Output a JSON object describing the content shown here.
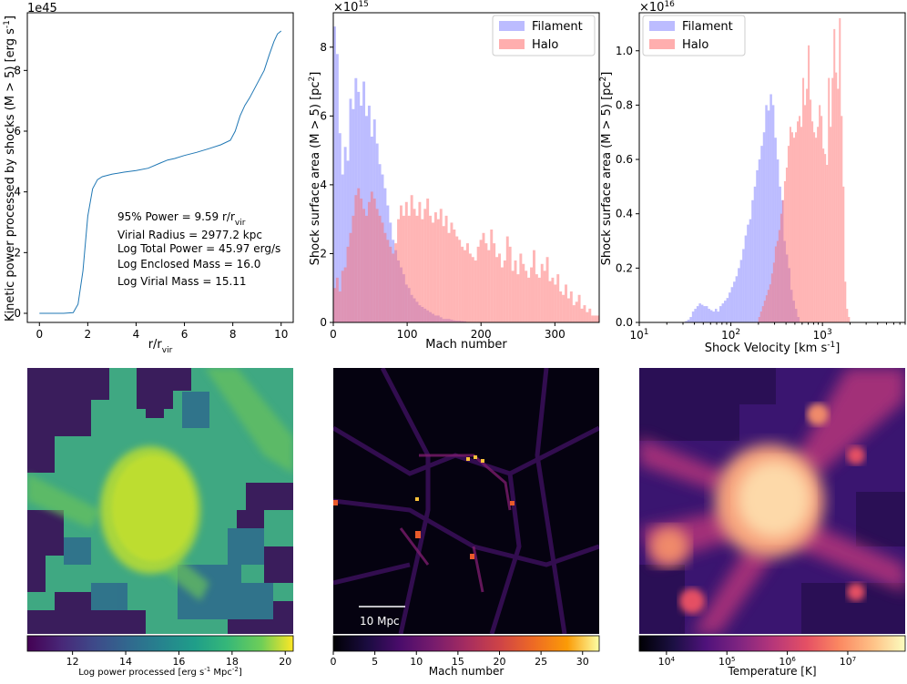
{
  "colors": {
    "filament": "#6b6bff",
    "halo": "#ff6b6b",
    "line": "#1f77b4"
  },
  "chart_data": [
    {
      "type": "line",
      "name": "enclosed-power",
      "title": "",
      "xlabel": "r/r",
      "xlabel_sub": "vir",
      "ylabel": "Kinetic power processed by shocks (M > 5) [erg s",
      "ylabel_sup": "-1",
      "ylabel_end": "]",
      "offset_label": "1e45",
      "xlim": [
        -0.5,
        10.5
      ],
      "ylim": [
        -0.3,
        9.9
      ],
      "xticks": [
        0,
        2,
        4,
        6,
        8,
        10
      ],
      "yticks": [
        0,
        2,
        4,
        6,
        8
      ],
      "x": [
        0,
        0.5,
        1.0,
        1.4,
        1.6,
        1.8,
        2.0,
        2.2,
        2.4,
        2.6,
        3.0,
        3.5,
        4.0,
        4.5,
        5.0,
        5.3,
        5.6,
        6.0,
        6.5,
        7.0,
        7.5,
        7.9,
        8.1,
        8.3,
        8.5,
        8.7,
        8.9,
        9.1,
        9.3,
        9.5,
        9.7,
        9.85,
        10.0
      ],
      "y": [
        0,
        0,
        0,
        0.02,
        0.3,
        1.4,
        3.2,
        4.1,
        4.4,
        4.5,
        4.58,
        4.65,
        4.7,
        4.78,
        4.95,
        5.05,
        5.1,
        5.2,
        5.3,
        5.42,
        5.55,
        5.7,
        6.0,
        6.5,
        6.85,
        7.1,
        7.4,
        7.7,
        8.0,
        8.5,
        8.95,
        9.2,
        9.3
      ],
      "annotations": [
        {
          "text": "95% Power = 9.59 r/r",
          "sub": "vir"
        },
        {
          "text": "Virial Radius = 2977.2 kpc"
        },
        {
          "text": "Log Total Power = 45.97 erg/s"
        },
        {
          "text": "Log Enclosed Mass = 16.0"
        },
        {
          "text": "Log Virial Mass = 15.11"
        }
      ]
    },
    {
      "type": "bar",
      "name": "mach-histogram",
      "xlabel": "Mach number",
      "ylabel": "Shock surface area (M > 5) [pc",
      "ylabel_sup": "2",
      "ylabel_end": "]",
      "offset_label": "×10",
      "offset_exp": "15",
      "xlim": [
        0,
        360
      ],
      "ylim": [
        0,
        9.0
      ],
      "xticks": [
        0,
        100,
        200,
        300
      ],
      "yticks": [
        0,
        2,
        4,
        6,
        8
      ],
      "legend": [
        "Filament",
        "Halo"
      ],
      "legend_loc": "top-right",
      "series": [
        {
          "name": "Filament",
          "bin_start": 0,
          "bin_width": 3.6,
          "values": [
            8.6,
            7.8,
            5.5,
            4.3,
            5.1,
            4.7,
            6.5,
            6.2,
            7.1,
            6.7,
            6.3,
            7.0,
            6.0,
            6.3,
            5.4,
            5.9,
            5.2,
            4.6,
            4.3,
            3.9,
            3.4,
            2.9,
            2.4,
            2.1,
            1.8,
            1.6,
            1.4,
            1.1,
            1.0,
            0.8,
            0.7,
            0.6,
            0.5,
            0.45,
            0.4,
            0.35,
            0.3,
            0.25,
            0.2,
            0.2,
            0.15,
            0.1,
            0.1,
            0.1,
            0.08,
            0.06,
            0.05,
            0.05,
            0.04,
            0.03
          ]
        },
        {
          "name": "Halo",
          "bin_start": 0,
          "bin_width": 3.6,
          "values": [
            1.0,
            1.3,
            0.9,
            1.5,
            1.6,
            2.2,
            2.6,
            3.1,
            3.7,
            3.9,
            3.6,
            3.3,
            3.1,
            3.5,
            3.8,
            3.6,
            3.3,
            3.1,
            2.9,
            2.6,
            2.4,
            2.2,
            2.0,
            2.3,
            3.0,
            3.4,
            3.1,
            3.5,
            3.1,
            3.7,
            3.3,
            3.1,
            3.5,
            3.0,
            3.3,
            3.6,
            3.1,
            2.9,
            3.2,
            3.0,
            3.3,
            2.8,
            3.1,
            2.6,
            2.9,
            2.7,
            2.5,
            2.4,
            2.2,
            2.1,
            2.3,
            2.0,
            1.9,
            1.8,
            2.2,
            2.4,
            2.6,
            2.3,
            2.1,
            2.7,
            2.3,
            1.9,
            2.0,
            1.6,
            1.8,
            2.5,
            2.2,
            1.5,
            1.8,
            1.4,
            2.0,
            1.7,
            1.5,
            1.3,
            1.6,
            2.1,
            1.4,
            1.3,
            1.7,
            1.5,
            1.9,
            1.2,
            1.3,
            1.1,
            1.4,
            0.9,
            0.8,
            1.1,
            0.7,
            0.9,
            0.5,
            0.6,
            0.8,
            0.4,
            0.5,
            0.3,
            0.4,
            0.2,
            0.2,
            0.2
          ]
        }
      ]
    },
    {
      "type": "bar",
      "name": "velocity-histogram",
      "xlabel": "Shock Velocity [km s",
      "xlabel_sup": "-1",
      "xlabel_end": "]",
      "ylabel": "Shock surface area (M > 5) [pc",
      "ylabel_sup": "2",
      "ylabel_end": "]",
      "offset_label": "×10",
      "offset_exp": "16",
      "xscale": "log",
      "xlim": [
        10,
        8000
      ],
      "ylim": [
        0,
        1.14
      ],
      "xticks": [
        {
          "base": "10",
          "exp": "1",
          "value": 10
        },
        {
          "base": "10",
          "exp": "2",
          "value": 100
        },
        {
          "base": "10",
          "exp": "3",
          "value": 1000
        }
      ],
      "yticks": [
        0.0,
        0.2,
        0.4,
        0.6,
        0.8,
        1.0
      ],
      "legend": [
        "Filament",
        "Halo"
      ],
      "legend_loc": "top-left",
      "series": [
        {
          "name": "Filament",
          "bin_start_log": 1.5,
          "bin_width_log": 0.025,
          "values": [
            0.005,
            0.01,
            0.02,
            0.04,
            0.05,
            0.06,
            0.07,
            0.065,
            0.06,
            0.06,
            0.05,
            0.045,
            0.04,
            0.05,
            0.04,
            0.06,
            0.07,
            0.08,
            0.09,
            0.11,
            0.13,
            0.15,
            0.17,
            0.2,
            0.23,
            0.27,
            0.32,
            0.36,
            0.38,
            0.45,
            0.5,
            0.56,
            0.6,
            0.65,
            0.7,
            0.8,
            0.78,
            0.84,
            0.8,
            0.68,
            0.6,
            0.5,
            0.45,
            0.3,
            0.25,
            0.2,
            0.12,
            0.08,
            0.05,
            0.02
          ]
        },
        {
          "name": "Halo",
          "bin_start_log": 2.3,
          "bin_width_log": 0.02,
          "values": [
            0.02,
            0.04,
            0.06,
            0.08,
            0.1,
            0.12,
            0.14,
            0.18,
            0.22,
            0.28,
            0.3,
            0.34,
            0.4,
            0.45,
            0.52,
            0.57,
            0.65,
            0.72,
            0.7,
            0.68,
            0.7,
            0.74,
            0.76,
            0.72,
            0.9,
            0.8,
            0.86,
            1.02,
            0.82,
            0.74,
            0.7,
            0.68,
            0.72,
            0.8,
            0.76,
            0.64,
            0.62,
            0.58,
            0.9,
            0.72,
            0.9,
            1.08,
            0.92,
            0.86,
            1.12,
            0.76,
            0.5,
            0.15,
            0.05,
            0.02
          ]
        }
      ]
    },
    {
      "type": "heatmap",
      "name": "log-power-map",
      "colormap": "viridis",
      "colorbar_label": "Log power processed [erg s",
      "colorbar_sup": "-1",
      "colorbar_mid": " Mpc",
      "colorbar_sup2": "-2",
      "colorbar_end": "]",
      "vmin": 10.3,
      "vmax": 20.3,
      "ticks": [
        12,
        14,
        16,
        18,
        20
      ]
    },
    {
      "type": "heatmap",
      "name": "mach-map",
      "colormap": "inferno",
      "colorbar_label": "Mach number",
      "scalebar_label": "10 Mpc",
      "vmin": 0,
      "vmax": 32,
      "ticks": [
        0,
        5,
        10,
        15,
        20,
        25,
        30
      ]
    },
    {
      "type": "heatmap",
      "name": "temperature-map",
      "colormap": "magma",
      "colorbar_label": "Temperature [K]",
      "scale": "log",
      "vmin_log": 3.55,
      "vmax_log": 7.95,
      "ticks": [
        {
          "base": "10",
          "exp": "4",
          "value": 4
        },
        {
          "base": "10",
          "exp": "5",
          "value": 5
        },
        {
          "base": "10",
          "exp": "6",
          "value": 6
        },
        {
          "base": "10",
          "exp": "7",
          "value": 7
        }
      ]
    }
  ]
}
